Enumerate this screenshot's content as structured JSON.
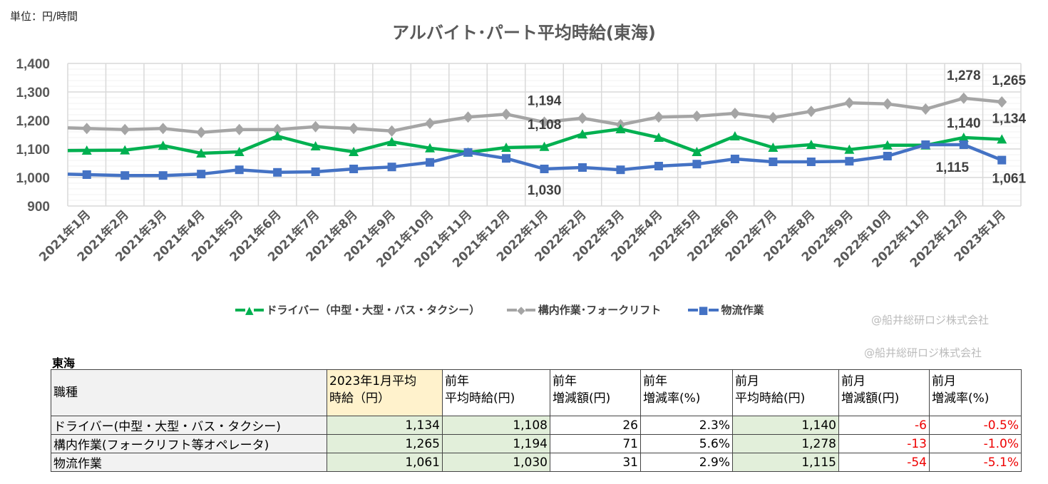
{
  "unit_label": "単位：円/時間",
  "copyright": "@船井総研ロジ株式会社",
  "chart_data": {
    "type": "line",
    "title": "アルバイト･パート平均時給(東海)",
    "ylim": [
      900,
      1400
    ],
    "yticks": [
      "900",
      "1,000",
      "1,100",
      "1,200",
      "1,300",
      "1,400"
    ],
    "grid": true,
    "legend": "bottom",
    "categories": [
      "2021年1月",
      "2021年2月",
      "2021年3月",
      "2021年4月",
      "2021年5月",
      "2021年6月",
      "2021年7月",
      "2021年8月",
      "2021年9月",
      "2021年10月",
      "2021年11月",
      "2021年12月",
      "2022年1月",
      "2022年2月",
      "2022年3月",
      "2022年4月",
      "2022年5月",
      "2022年6月",
      "2022年7月",
      "2022年8月",
      "2022年9月",
      "2022年10月",
      "2022年11月",
      "2022年12月",
      "2023年1月"
    ],
    "series": [
      {
        "name": "ドライバー（中型・大型・バス・タクシー）",
        "color": "#00b050",
        "marker": "triangle",
        "values": [
          1095,
          1096,
          1112,
          1085,
          1090,
          1145,
          1110,
          1090,
          1125,
          1103,
          1088,
          1105,
          1108,
          1152,
          1170,
          1140,
          1090,
          1145,
          1105,
          1115,
          1098,
          1113,
          1113,
          1140,
          1134
        ]
      },
      {
        "name": "構内作業･フォークリフト",
        "color": "#a5a5a5",
        "marker": "diamond",
        "values": [
          1172,
          1168,
          1172,
          1158,
          1168,
          1168,
          1178,
          1172,
          1163,
          1190,
          1212,
          1222,
          1194,
          1208,
          1185,
          1212,
          1215,
          1225,
          1210,
          1232,
          1262,
          1258,
          1240,
          1278,
          1265
        ]
      },
      {
        "name": "物流作業",
        "color": "#4472c4",
        "marker": "square",
        "values": [
          1010,
          1007,
          1007,
          1012,
          1027,
          1018,
          1020,
          1030,
          1037,
          1053,
          1088,
          1067,
          1030,
          1035,
          1027,
          1040,
          1047,
          1065,
          1055,
          1055,
          1057,
          1075,
          1115,
          1115,
          1061
        ]
      }
    ],
    "data_labels": [
      {
        "series": 1,
        "index": 12,
        "text": "1,194"
      },
      {
        "series": 0,
        "index": 12,
        "text": "1,108"
      },
      {
        "series": 2,
        "index": 12,
        "text": "1,030"
      },
      {
        "series": 1,
        "index": 23,
        "text": "1,278"
      },
      {
        "series": 0,
        "index": 23,
        "text": "1,140"
      },
      {
        "series": 2,
        "index": 23,
        "text": "1,115"
      },
      {
        "series": 1,
        "index": 24,
        "text": "1,265"
      },
      {
        "series": 0,
        "index": 24,
        "text": "1,134"
      },
      {
        "series": 2,
        "index": 24,
        "text": "1,061"
      }
    ]
  },
  "table": {
    "region": "東海",
    "headers": [
      [
        "職種",
        ""
      ],
      [
        "2023年1月平均",
        "時給（円）"
      ],
      [
        "前年",
        "平均時給(円)"
      ],
      [
        "前年",
        "増減額(円)"
      ],
      [
        "前年",
        "増減率(%)"
      ],
      [
        "前月",
        "平均時給(円)"
      ],
      [
        "前月",
        "増減額(円)"
      ],
      [
        "前月",
        "増減率(%)"
      ]
    ],
    "rows": [
      [
        "ドライバー(中型・大型・バス・タクシー)",
        "1,134",
        "1,108",
        "26",
        "2.3%",
        "1,140",
        "-6",
        "-0.5%"
      ],
      [
        "構内作業(フォークリフト等オペレータ)",
        "1,265",
        "1,194",
        "71",
        "5.6%",
        "1,278",
        "-13",
        "-1.0%"
      ],
      [
        "物流作業",
        "1,061",
        "1,030",
        "31",
        "2.9%",
        "1,115",
        "-54",
        "-5.1%"
      ]
    ]
  }
}
